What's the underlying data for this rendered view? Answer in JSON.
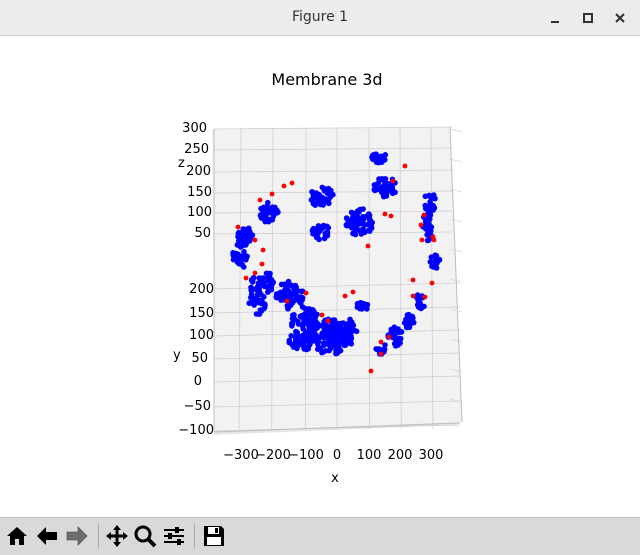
{
  "window": {
    "title": "Figure 1",
    "controls": [
      "minimize",
      "maximize",
      "close"
    ]
  },
  "toolbar": {
    "buttons": [
      {
        "name": "home-icon"
      },
      {
        "name": "back-arrow-icon"
      },
      {
        "name": "forward-arrow-icon"
      },
      {
        "name": "pan-icon"
      },
      {
        "name": "zoom-icon"
      },
      {
        "name": "configure-subplots-icon"
      },
      {
        "name": "save-icon"
      }
    ]
  },
  "chart_data": {
    "type": "scatter",
    "title": "Membrane 3d",
    "xlabel": "x",
    "ylabel": "y",
    "zlabel": "z",
    "x_ticks": [
      "−300",
      "−200",
      "−100",
      "0",
      "100",
      "200",
      "300"
    ],
    "y_ticks": [
      "200",
      "150",
      "100",
      "50",
      "0",
      "−50",
      "−100"
    ],
    "z_ticks": [
      "300",
      "250",
      "200",
      "150",
      "100",
      "50"
    ],
    "series": [
      {
        "color": "#0000ff"
      },
      {
        "color": "#ff0000"
      }
    ],
    "grid": true
  }
}
